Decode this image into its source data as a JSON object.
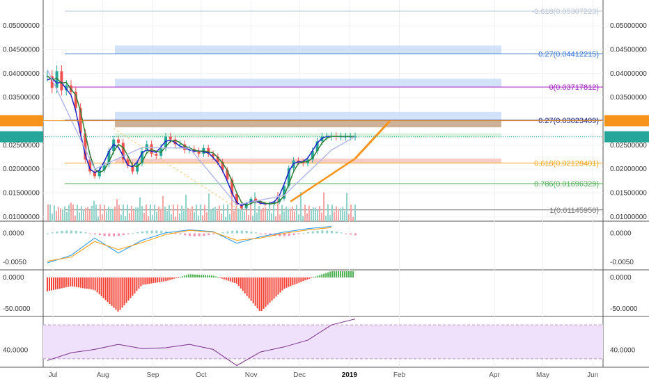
{
  "colors": {
    "up": "#26a69a",
    "down": "#ef5350",
    "volume_up": "#8fd3cb",
    "volume_down": "#f5a5a3",
    "ma_fast": "#1e22c8",
    "ma_mid": "#2e7d32",
    "ma_slow": "#b4b8e8",
    "fib_zone": "#c7dbf7",
    "price_badge": "#f7931a",
    "rsi_line": "#7b2d8e",
    "rsi_bg": "#efe1fb",
    "macd_line": "#2196f3",
    "signal_line": "#ff9800"
  },
  "chart_data": [
    {
      "type": "candlestick",
      "title": "",
      "x_labels": [
        "Jul",
        "Aug",
        "Sep",
        "Oct",
        "Nov",
        "Dec",
        "2019",
        "Feb",
        "Apr",
        "May",
        "Jun"
      ],
      "y_ticks": [
        "0.05000000",
        "0.04500000",
        "0.04000000",
        "0.03500000",
        "0.03000000",
        "0.02500000",
        "0.02000000",
        "0.01500000",
        "0.01000000"
      ],
      "ylim": [
        0.0091,
        0.0554
      ],
      "last_price": "0.02676701",
      "level_price": "0.03013548",
      "fib_levels": [
        {
          "label": "-0.618(0.05307223)",
          "value": 0.05307223,
          "color": "#b9c7d8"
        },
        {
          "label": "0.27(0.04412215)",
          "value": 0.04412215,
          "color": "#3d7bd9"
        },
        {
          "label": "0(0.03717812)",
          "value": 0.03717812,
          "color": "#a020c0"
        },
        {
          "label": "0.27(0.03023409)",
          "value": 0.03023409,
          "color": "#1a237e"
        },
        {
          "label": "0.618(0.02128401)",
          "value": 0.02128401,
          "color": "#f5a623"
        },
        {
          "label": "0.786(0.01696329)",
          "value": 0.01696329,
          "color": "#4caf50"
        },
        {
          "label": "1(0.01145950)",
          "value": 0.0114595,
          "color": "#777777"
        }
      ],
      "series": [
        {
          "name": "",
          "x": [
            0,
            3,
            6,
            9,
            12,
            15,
            18,
            21,
            24,
            27,
            30,
            33,
            36,
            39,
            42,
            45,
            48,
            51,
            54,
            57,
            60,
            63,
            66,
            69,
            72,
            75,
            78,
            81,
            84,
            87,
            90,
            93,
            96,
            99,
            102,
            105,
            108,
            111,
            114,
            117,
            120,
            123,
            126,
            129,
            132,
            135,
            138,
            141,
            144,
            147,
            150,
            153,
            156,
            159,
            162,
            165,
            168,
            171,
            174,
            177,
            180,
            183,
            186,
            189,
            192,
            195
          ],
          "close": [
            0.0395,
            0.037,
            0.0405,
            0.0365,
            0.0375,
            0.0362,
            0.0328,
            0.0275,
            0.022,
            0.0195,
            0.0185,
            0.0198,
            0.021,
            0.0238,
            0.0262,
            0.0255,
            0.022,
            0.0208,
            0.0195,
            0.0212,
            0.0238,
            0.0252,
            0.0232,
            0.0228,
            0.0245,
            0.0268,
            0.0262,
            0.0252,
            0.0252,
            0.024,
            0.0242,
            0.0238,
            0.0232,
            0.0244,
            0.0232,
            0.0226,
            0.0215,
            0.0198,
            0.0178,
            0.0148,
            0.0125,
            0.0118,
            0.0128,
            0.0138,
            0.0132,
            0.0128,
            0.0126,
            0.0128,
            0.0131,
            0.0138,
            0.0165,
            0.0202,
            0.0218,
            0.0215,
            0.0212,
            0.022,
            0.0238,
            0.0258,
            0.0268,
            0.0268,
            0.0269,
            0.0268,
            0.0268,
            0.0268,
            0.0268,
            0.0268
          ]
        },
        {
          "name": "",
          "x": [
            0,
            30,
            60,
            90,
            120,
            150,
            180,
            195
          ],
          "values": [
            0.0408,
            0.02,
            0.0245,
            0.0244,
            0.0125,
            0.0145,
            0.024,
            0.0268
          ]
        }
      ]
    },
    {
      "type": "line",
      "title": "",
      "y_ticks": [
        "0.0000",
        "-0.0050"
      ],
      "ylim": [
        -0.0063,
        0.0021
      ],
      "series": [
        {
          "name": "",
          "x": [
            0,
            15,
            30,
            45,
            60,
            75,
            90,
            105,
            120,
            135,
            150,
            165,
            180
          ],
          "values": [
            -0.0051,
            -0.0038,
            -0.0008,
            -0.0034,
            -0.0012,
            0.0001,
            0.0006,
            0.0003,
            -0.0017,
            -0.0006,
            0.0002,
            0.0008,
            0.0012
          ]
        },
        {
          "name": "",
          "x": [
            0,
            15,
            30,
            45,
            60,
            75,
            90,
            105,
            120,
            135,
            150,
            165,
            180
          ],
          "values": [
            -0.0048,
            -0.0041,
            -0.0014,
            -0.0028,
            -0.0016,
            -0.0002,
            0.0005,
            0.0002,
            -0.0012,
            -0.0008,
            0.0,
            0.0006,
            0.001
          ]
        }
      ]
    },
    {
      "type": "bar",
      "title": "",
      "y_ticks": [
        "0.0000",
        "-50.0000"
      ],
      "ylim": [
        -62,
        12
      ],
      "x": [
        0,
        15,
        30,
        45,
        60,
        75,
        90,
        105,
        120,
        135,
        150,
        165,
        180
      ],
      "values": [
        -22,
        -14,
        -20,
        -55,
        -12,
        -6,
        5,
        3,
        -10,
        -55,
        -18,
        -3,
        10
      ]
    },
    {
      "type": "line",
      "title": "",
      "y_ticks": [
        "40.0000"
      ],
      "ylim": [
        20,
        80
      ],
      "bands": [
        70,
        30
      ],
      "series": [
        {
          "name": "",
          "x": [
            0,
            15,
            30,
            45,
            60,
            75,
            90,
            105,
            120,
            135,
            150,
            165,
            180,
            195
          ],
          "values": [
            28,
            37,
            41,
            47,
            42,
            43,
            47,
            41,
            22,
            38,
            44,
            52,
            70,
            77
          ]
        }
      ]
    }
  ]
}
